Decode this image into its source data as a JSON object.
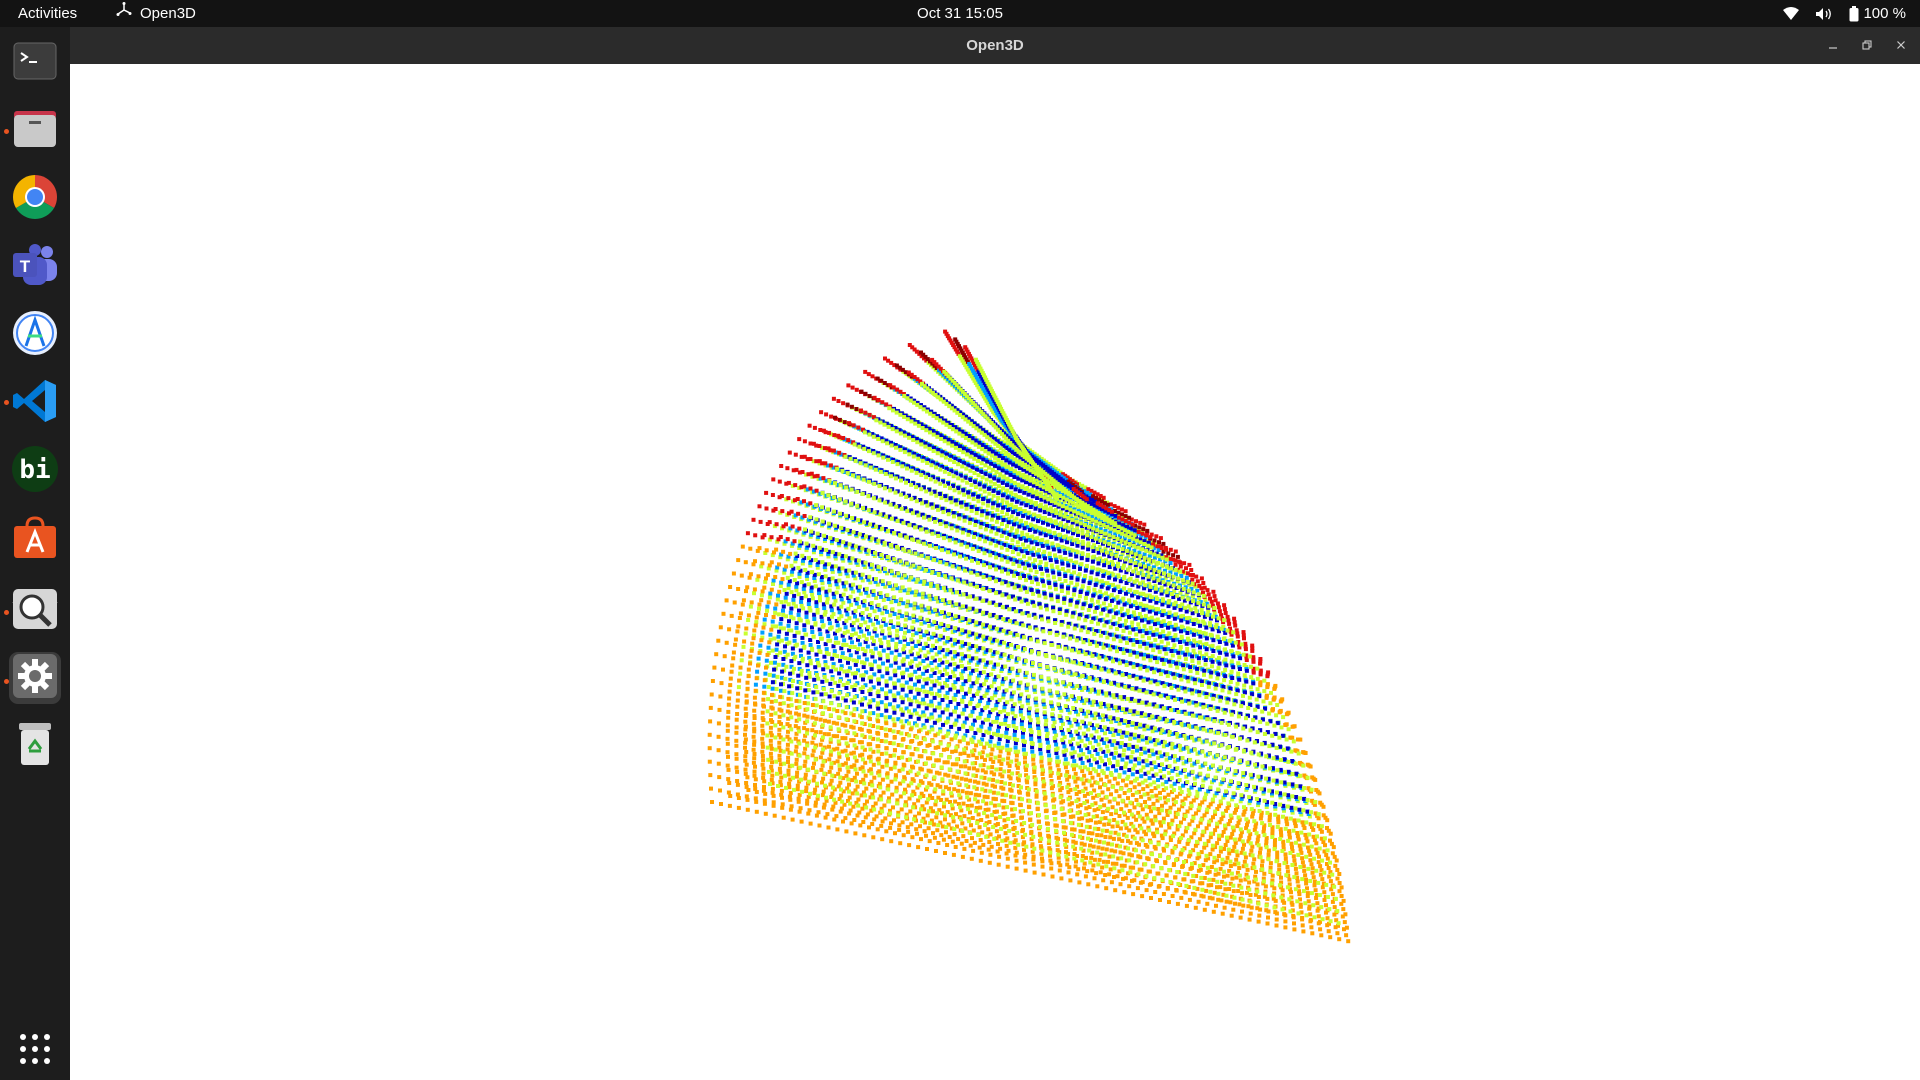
{
  "topbar": {
    "activities_label": "Activities",
    "app_menu_label": "Open3D",
    "app_menu_icon": "open3d-logo-icon",
    "clock": "Oct 31  15:05",
    "battery_percent": "100 %",
    "icons": [
      "wifi-icon",
      "volume-icon",
      "battery-icon"
    ]
  },
  "dock": {
    "items": [
      {
        "name": "terminal",
        "icon": "terminal-icon",
        "running": false,
        "active": false
      },
      {
        "name": "files",
        "icon": "folder-icon",
        "running": true,
        "active": false
      },
      {
        "name": "chrome",
        "icon": "chrome-icon",
        "running": false,
        "active": false
      },
      {
        "name": "teams",
        "icon": "teams-icon",
        "running": false,
        "active": false
      },
      {
        "name": "android-studio",
        "icon": "android-studio-icon",
        "running": false,
        "active": false
      },
      {
        "name": "vscode",
        "icon": "vscode-icon",
        "running": true,
        "active": false
      },
      {
        "name": "bi",
        "icon": "bi-icon",
        "label": "bi",
        "running": false,
        "active": false
      },
      {
        "name": "app-center",
        "icon": "app-center-icon",
        "running": false,
        "active": false
      },
      {
        "name": "image-viewer",
        "icon": "magnifier-icon",
        "running": true,
        "active": false
      },
      {
        "name": "settings",
        "icon": "gear-icon",
        "running": true,
        "active": true
      },
      {
        "name": "trash",
        "icon": "trash-icon",
        "running": false,
        "active": false
      }
    ],
    "show_apps_icon": "grid-icon"
  },
  "window": {
    "title": "Open3D",
    "controls": [
      "minimize-icon",
      "maximize-icon",
      "close-icon"
    ]
  },
  "viewport": {
    "content": "3D point cloud rendering (hemisphere of colored points, jet colormap)",
    "background": "#ffffff",
    "colormap": [
      "#0000c8",
      "#00a0ff",
      "#30e0c0",
      "#c8ff30",
      "#ffa000",
      "#e01010",
      "#8c0000"
    ]
  }
}
